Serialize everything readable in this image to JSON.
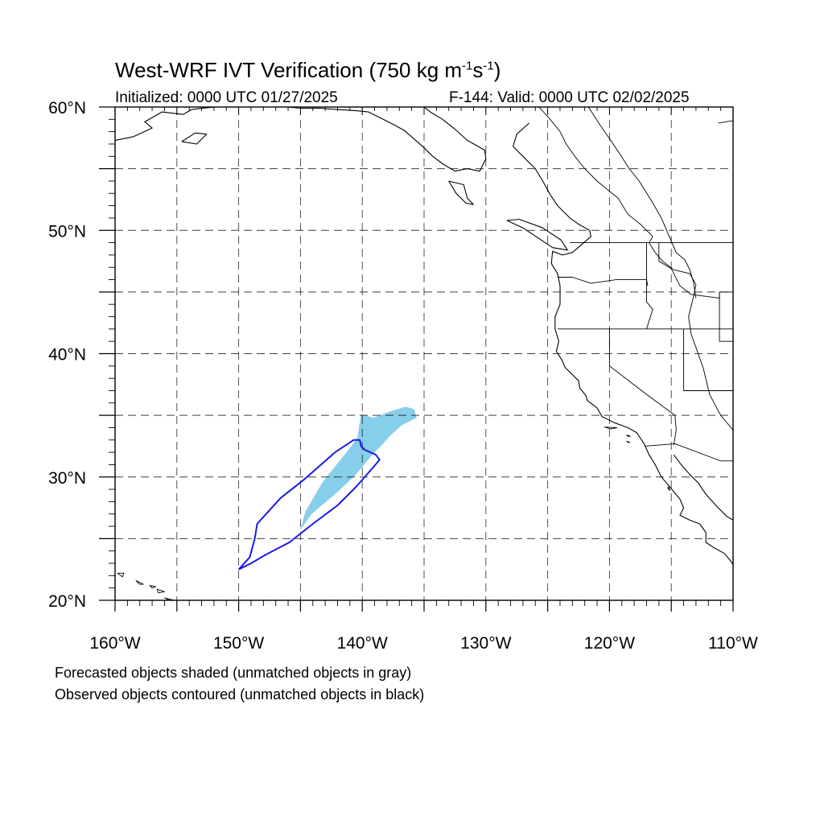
{
  "title": {
    "text_main": "West-WRF IVT Verification (750 kg m",
    "sup1": "-1",
    "text_mid": "s",
    "sup2": "-1",
    "text_end": ")"
  },
  "initialized": "Initialized: 0000 UTC 01/27/2025",
  "valid": "F-144: Valid: 0000 UTC 02/02/2025",
  "legend": {
    "line1": "Forecasted objects shaded (unmatched objects in gray)",
    "line2": "Observed objects contoured (unmatched objects in black)"
  },
  "colors": {
    "forecast_shade": "#87ceeb",
    "observed_contour": "#1a1ae6",
    "coastline": "#000000",
    "grid": "#000000"
  },
  "chart_data": {
    "type": "map",
    "lon_range": [
      -160,
      -110
    ],
    "lat_range": [
      20,
      60
    ],
    "grid": "dashed, every 5 degrees",
    "x_ticks": [
      {
        "lon": -160,
        "label": "160°W"
      },
      {
        "lon": -150,
        "label": "150°W"
      },
      {
        "lon": -140,
        "label": "140°W"
      },
      {
        "lon": -130,
        "label": "130°W"
      },
      {
        "lon": -120,
        "label": "120°W"
      },
      {
        "lon": -110,
        "label": "110°W"
      }
    ],
    "y_ticks": [
      {
        "lat": 20,
        "label": "20°N"
      },
      {
        "lat": 30,
        "label": "30°N"
      },
      {
        "lat": 40,
        "label": "40°N"
      },
      {
        "lat": 50,
        "label": "50°N"
      },
      {
        "lat": 60,
        "label": "60°N"
      }
    ],
    "forecast_object": {
      "style": "shaded",
      "points": [
        [
          -145,
          25.7
        ],
        [
          -144.6,
          27.2
        ],
        [
          -143.2,
          29.6
        ],
        [
          -141.2,
          32.1
        ],
        [
          -140.4,
          33.2
        ],
        [
          -140.1,
          35.1
        ],
        [
          -139.1,
          34.8
        ],
        [
          -137.8,
          35.3
        ],
        [
          -136.5,
          35.7
        ],
        [
          -135.8,
          35.5
        ],
        [
          -135.6,
          34.8
        ],
        [
          -136.8,
          34.2
        ],
        [
          -137.8,
          33.3
        ],
        [
          -138.4,
          32.6
        ],
        [
          -139.2,
          31.8
        ],
        [
          -140.6,
          30.1
        ],
        [
          -142.1,
          28.7
        ],
        [
          -144.1,
          27.0
        ],
        [
          -145,
          25.7
        ]
      ]
    },
    "observed_object": {
      "style": "contour",
      "points": [
        [
          -150.0,
          22.5
        ],
        [
          -149.0,
          23.0
        ],
        [
          -147.8,
          23.7
        ],
        [
          -145.9,
          24.7
        ],
        [
          -144.0,
          26.2
        ],
        [
          -142.0,
          27.7
        ],
        [
          -140.5,
          29.2
        ],
        [
          -139.1,
          30.8
        ],
        [
          -138.6,
          31.4
        ],
        [
          -138.9,
          31.8
        ],
        [
          -139.8,
          32.2
        ],
        [
          -140.1,
          32.5
        ],
        [
          -140.2,
          33.0
        ],
        [
          -140.7,
          33.0
        ],
        [
          -142.2,
          32.0
        ],
        [
          -144.7,
          29.8
        ],
        [
          -146.6,
          28.3
        ],
        [
          -148.5,
          26.2
        ],
        [
          -148.7,
          25.0
        ],
        [
          -149.1,
          23.5
        ],
        [
          -150.0,
          22.5
        ]
      ]
    },
    "coastline": [
      [
        [
          -125.7,
          60.0
        ],
        [
          -124.8,
          59.0
        ],
        [
          -124.0,
          58.0
        ],
        [
          -123.5,
          57.0
        ],
        [
          -122.8,
          56.0
        ],
        [
          -122.0,
          55.0
        ],
        [
          -121.0,
          54.0
        ],
        [
          -119.3,
          52.6
        ],
        [
          -118.5,
          51.3
        ],
        [
          -117.5,
          50.5
        ],
        [
          -116.5,
          49.5
        ],
        [
          -116.8,
          49.0
        ],
        [
          -116.3,
          48.2
        ],
        [
          -115.7,
          47.5
        ],
        [
          -114.8,
          46.8
        ],
        [
          -113.5,
          46.5
        ],
        [
          -113.0,
          45.6
        ],
        [
          -113.3,
          44.2
        ],
        [
          -113.6,
          43.0
        ],
        [
          -113.4,
          41.6
        ],
        [
          -113.0,
          40.5
        ],
        [
          -112.4,
          38.8
        ],
        [
          -111.9,
          36.7
        ],
        [
          -111.0,
          35.0
        ],
        [
          -110.0,
          33.8
        ]
      ],
      [
        [
          -121.7,
          60.0
        ],
        [
          -120.8,
          58.6
        ],
        [
          -119.9,
          57.3
        ],
        [
          -119.1,
          56.1
        ],
        [
          -118.4,
          55.0
        ],
        [
          -117.6,
          54.0
        ],
        [
          -116.6,
          52.4
        ],
        [
          -115.8,
          51.0
        ],
        [
          -115.2,
          49.6
        ],
        [
          -114.6,
          48.2
        ],
        [
          -113.9,
          47.6
        ],
        [
          -113.5,
          46.8
        ],
        [
          -113.2,
          45.8
        ],
        [
          -113.0,
          44.5
        ]
      ],
      [
        [
          -110.0,
          58.9
        ],
        [
          -111.2,
          58.7
        ]
      ],
      [
        [
          -108.8,
          57.1
        ],
        [
          -109.8,
          56.4
        ],
        [
          -110.0,
          56.0
        ]
      ]
    ],
    "west_coast": [
      [
        -126.5,
        58.7
      ],
      [
        -127.5,
        57.8
      ],
      [
        -127.8,
        56.8
      ],
      [
        -127.0,
        56.0
      ],
      [
        -126.0,
        55.0
      ],
      [
        -125.4,
        54.0
      ],
      [
        -124.8,
        52.9
      ],
      [
        -124.2,
        52.0
      ],
      [
        -123.2,
        51.0
      ],
      [
        -122.5,
        50.5
      ],
      [
        -121.6,
        50.0
      ],
      [
        -121.5,
        49.5
      ],
      [
        -123.0,
        48.2
      ],
      [
        -123.8,
        48.0
      ],
      [
        -124.6,
        48.3
      ],
      [
        -124.7,
        47.3
      ],
      [
        -124.2,
        46.5
      ],
      [
        -124.0,
        45.5
      ],
      [
        -124.0,
        44.0
      ],
      [
        -124.4,
        43.0
      ],
      [
        -124.4,
        42.0
      ],
      [
        -124.1,
        41.0
      ],
      [
        -124.3,
        40.2
      ],
      [
        -123.8,
        39.4
      ],
      [
        -123.6,
        38.9
      ],
      [
        -122.9,
        38.2
      ],
      [
        -122.5,
        37.8
      ],
      [
        -122.4,
        37.2
      ],
      [
        -121.9,
        36.6
      ],
      [
        -121.8,
        36.2
      ],
      [
        -121.0,
        35.6
      ],
      [
        -120.6,
        34.9
      ],
      [
        -119.6,
        34.4
      ],
      [
        -118.5,
        34.0
      ],
      [
        -117.8,
        33.6
      ],
      [
        -117.2,
        32.7
      ],
      [
        -116.8,
        31.8
      ],
      [
        -116.3,
        31.0
      ],
      [
        -115.8,
        30.0
      ],
      [
        -115.2,
        29.3
      ],
      [
        -114.3,
        28.2
      ],
      [
        -114.0,
        27.5
      ],
      [
        -114.3,
        26.9
      ],
      [
        -113.5,
        26.5
      ],
      [
        -112.7,
        26.2
      ],
      [
        -112.2,
        25.5
      ],
      [
        -112.2,
        24.7
      ],
      [
        -111.6,
        24.3
      ],
      [
        -110.7,
        23.8
      ],
      [
        -110.2,
        23.2
      ],
      [
        -109.8,
        22.9
      ],
      [
        -110.0,
        23.6
      ]
    ],
    "gulf_coast": [
      [
        -114.8,
        31.8
      ],
      [
        -114.2,
        31.0
      ],
      [
        -113.5,
        30.2
      ],
      [
        -112.8,
        29.5
      ],
      [
        -112.2,
        28.6
      ],
      [
        -111.3,
        27.6
      ],
      [
        -110.5,
        26.8
      ],
      [
        -110.0,
        26.5
      ]
    ],
    "borders": [
      [
        [
          -123.2,
          49.0
        ],
        [
          -110.0,
          49.0
        ]
      ],
      [
        [
          -124.2,
          46.2
        ],
        [
          -123.0,
          46.2
        ],
        [
          -121.5,
          45.7
        ],
        [
          -119.5,
          46.0
        ],
        [
          -117.0,
          46.0
        ],
        [
          -116.9,
          45.5
        ]
      ],
      [
        [
          -124.2,
          42.0
        ],
        [
          -110.0,
          42.0
        ]
      ],
      [
        [
          -120.0,
          42.0
        ],
        [
          -120.0,
          39.0
        ],
        [
          -117.0,
          36.7
        ],
        [
          -114.7,
          35.0
        ],
        [
          -114.6,
          33.8
        ],
        [
          -114.8,
          32.6
        ]
      ],
      [
        [
          -117.1,
          32.5
        ],
        [
          -114.7,
          32.7
        ],
        [
          -111.0,
          31.3
        ],
        [
          -110.0,
          31.3
        ]
      ],
      [
        [
          -117.0,
          49.0
        ],
        [
          -117.0,
          44.2
        ],
        [
          -116.5,
          43.6
        ],
        [
          -117.0,
          42.0
        ]
      ],
      [
        [
          -114.0,
          42.0
        ],
        [
          -114.0,
          37.0
        ],
        [
          -110.0,
          37.0
        ]
      ],
      [
        [
          -111.1,
          45.0
        ],
        [
          -111.1,
          41.0
        ],
        [
          -110.0,
          41.0
        ]
      ],
      [
        [
          -116.0,
          49.0
        ],
        [
          -116.0,
          47.5
        ],
        [
          -115.0,
          46.9
        ],
        [
          -114.3,
          45.5
        ],
        [
          -113.4,
          44.8
        ],
        [
          -111.1,
          44.5
        ],
        [
          -111.1,
          45.0
        ],
        [
          -110.0,
          45.0
        ]
      ]
    ],
    "islands": [
      [
        [
          -159.8,
          22.2
        ],
        [
          -159.3,
          22.2
        ],
        [
          -159.4,
          21.9
        ],
        [
          -159.8,
          22.2
        ]
      ],
      [
        [
          -158.3,
          21.6
        ],
        [
          -157.7,
          21.3
        ],
        [
          -158.0,
          21.3
        ],
        [
          -158.3,
          21.6
        ]
      ],
      [
        [
          -157.2,
          21.2
        ],
        [
          -156.7,
          21.1
        ],
        [
          -157.0,
          21.0
        ],
        [
          -157.2,
          21.2
        ]
      ],
      [
        [
          -156.6,
          20.9
        ],
        [
          -156.0,
          20.7
        ],
        [
          -156.5,
          20.6
        ],
        [
          -156.6,
          20.9
        ]
      ],
      [
        [
          -156.0,
          20.2
        ],
        [
          -155.2,
          20.0
        ],
        [
          -155.6,
          19.6
        ],
        [
          -156.0,
          20.2
        ]
      ],
      [
        [
          -118.6,
          33.4
        ],
        [
          -118.3,
          33.3
        ],
        [
          -118.5,
          33.3
        ],
        [
          -118.6,
          33.4
        ]
      ],
      [
        [
          -120.4,
          34.05
        ],
        [
          -119.4,
          34.0
        ],
        [
          -119.9,
          33.9
        ],
        [
          -120.4,
          34.05
        ]
      ],
      [
        [
          -118.6,
          32.9
        ],
        [
          -118.35,
          32.8
        ],
        [
          -118.5,
          32.8
        ],
        [
          -118.6,
          32.9
        ]
      ],
      [
        [
          -115.3,
          29.1
        ],
        [
          -115.1,
          28.9
        ],
        [
          -115.2,
          29.2
        ],
        [
          -115.3,
          29.1
        ]
      ]
    ],
    "alaska_coast": [
      [
        -160.0,
        57.3
      ],
      [
        -158.5,
        57.6
      ],
      [
        -157.0,
        58.3
      ],
      [
        -157.6,
        58.8
      ],
      [
        -156.2,
        59.6
      ],
      [
        -154.5,
        59.4
      ],
      [
        -153.8,
        59.8
      ],
      [
        -152.0,
        60.0
      ]
    ],
    "kodiak": [
      [
        -154.6,
        57.2
      ],
      [
        -153.5,
        57.9
      ],
      [
        -152.6,
        57.8
      ],
      [
        -153.4,
        57.0
      ],
      [
        -154.6,
        57.2
      ]
    ],
    "bc_alaska_coast": [
      [
        -146.0,
        60.0
      ],
      [
        -145.0,
        59.9
      ],
      [
        -143.5,
        59.9
      ],
      [
        -142.0,
        59.8
      ],
      [
        -140.5,
        59.7
      ],
      [
        -139.5,
        59.6
      ],
      [
        -138.5,
        59.1
      ],
      [
        -137.5,
        58.6
      ],
      [
        -136.6,
        58.1
      ],
      [
        -135.8,
        57.4
      ],
      [
        -135.0,
        56.7
      ],
      [
        -134.3,
        56.0
      ],
      [
        -133.5,
        55.4
      ],
      [
        -132.5,
        54.8
      ],
      [
        -131.5,
        55.0
      ],
      [
        -130.5,
        54.8
      ],
      [
        -130.0,
        55.8
      ],
      [
        -130.1,
        56.5
      ],
      [
        -131.5,
        57.3
      ],
      [
        -132.5,
        58.2
      ],
      [
        -133.5,
        59.0
      ],
      [
        -134.5,
        59.6
      ],
      [
        -135.0,
        60.0
      ]
    ],
    "haida_gwaii": [
      [
        -133.0,
        54.0
      ],
      [
        -131.8,
        53.7
      ],
      [
        -131.5,
        52.6
      ],
      [
        -131.0,
        52.1
      ],
      [
        -131.6,
        52.2
      ],
      [
        -132.4,
        53.0
      ],
      [
        -133.0,
        54.0
      ]
    ],
    "vancouver_island": [
      [
        -128.3,
        50.8
      ],
      [
        -127.0,
        50.2
      ],
      [
        -125.8,
        49.4
      ],
      [
        -124.6,
        48.6
      ],
      [
        -123.4,
        48.4
      ],
      [
        -123.9,
        49.2
      ],
      [
        -125.4,
        50.2
      ],
      [
        -127.3,
        50.9
      ],
      [
        -128.3,
        50.8
      ]
    ]
  }
}
